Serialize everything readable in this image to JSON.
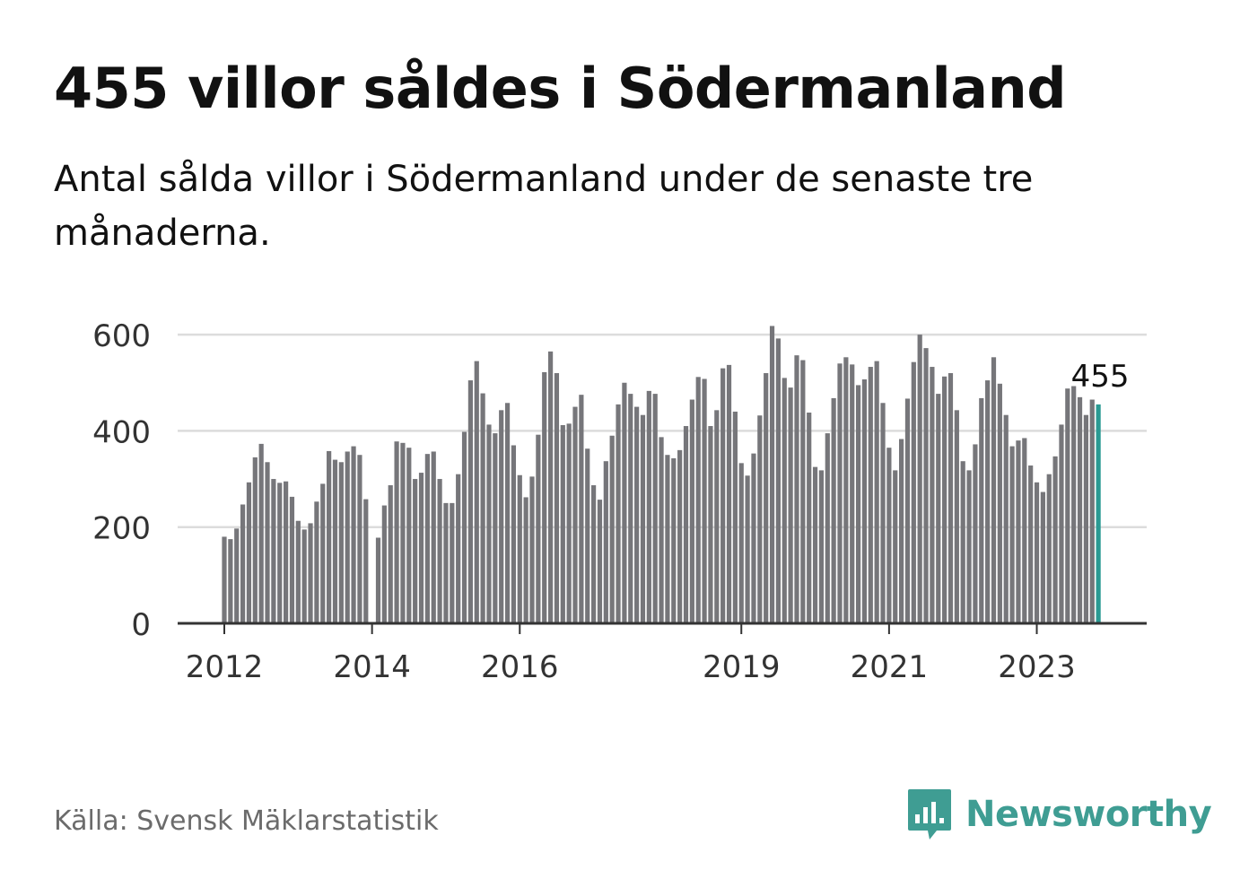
{
  "title": "455 villor såldes i Södermanland",
  "subtitle": "Antal sålda villor i Södermanland under de senaste tre månaderna.",
  "source": "Källa: Svensk Mäklarstatistik",
  "brand": {
    "name": "Newsworthy",
    "icon": "bar-chart-speech-bubble-icon",
    "color": "#3f9d93"
  },
  "colors": {
    "bar": "#76767a",
    "highlight": "#2a9a93",
    "grid": "#dcdcdc",
    "axis": "#333333"
  },
  "chart_data": {
    "type": "bar",
    "y_ticks": [
      0,
      200,
      400,
      600
    ],
    "ylim": [
      0,
      620
    ],
    "x_tick_labels": [
      "2012",
      "2014",
      "2016",
      "2019",
      "2021",
      "2023"
    ],
    "x_tick_dates": [
      "2012-01",
      "2014-01",
      "2016-01",
      "2019-01",
      "2021-01",
      "2023-01"
    ],
    "start_month": "2012-01",
    "end_month": "2023-10",
    "highlight_label": "455",
    "grid": true,
    "values": [
      180,
      175,
      197,
      247,
      293,
      345,
      373,
      335,
      300,
      292,
      295,
      263,
      213,
      195,
      208,
      253,
      290,
      358,
      340,
      335,
      357,
      368,
      350,
      258,
      null,
      178,
      245,
      287,
      378,
      375,
      365,
      300,
      313,
      352,
      357,
      300,
      250,
      250,
      310,
      398,
      505,
      545,
      478,
      413,
      395,
      443,
      458,
      370,
      308,
      262,
      305,
      392,
      522,
      565,
      520,
      412,
      415,
      450,
      475,
      363,
      287,
      257,
      337,
      390,
      455,
      500,
      477,
      450,
      433,
      483,
      477,
      387,
      350,
      343,
      360,
      410,
      465,
      512,
      508,
      410,
      443,
      530,
      537,
      440,
      333,
      307,
      353,
      432,
      520,
      618,
      592,
      510,
      490,
      557,
      547,
      438,
      325,
      318,
      395,
      468,
      540,
      553,
      538,
      495,
      507,
      533,
      545,
      458,
      365,
      318,
      383,
      467,
      543,
      600,
      572,
      533,
      477,
      513,
      520,
      443,
      337,
      318,
      372,
      468,
      505,
      553,
      498,
      433,
      368,
      380,
      385,
      328,
      293,
      273,
      310,
      347,
      413,
      488,
      493,
      470,
      433,
      465,
      455
    ]
  }
}
